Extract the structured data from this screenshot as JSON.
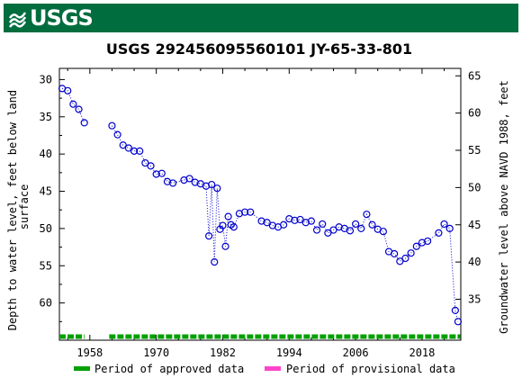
{
  "header": {
    "logo_text": "USGS",
    "logo_icon": "usgs-wave-icon",
    "banner_color": "#006d3f"
  },
  "chart_data": {
    "type": "scatter",
    "title": "USGS 292456095560101 JY-65-33-801",
    "ylabel_left": "Depth to water level, feet below land surface",
    "ylabel_right": "Groundwater level above NAVD 1988, feet",
    "xlim": [
      1952.5,
      2025.0
    ],
    "ylim_left": [
      65.0,
      28.5
    ],
    "ylim_right": [
      29.5,
      66.0
    ],
    "x_ticks": [
      1958,
      1970,
      1982,
      1994,
      2006,
      2018
    ],
    "y_ticks_left": [
      30,
      35,
      40,
      45,
      50,
      55,
      60
    ],
    "y_ticks_right": [
      35,
      40,
      45,
      50,
      55,
      60,
      65
    ],
    "marker_color": "#0000cc",
    "series": [
      {
        "values_x": [
          1953.0,
          1954.0,
          1955.0,
          1956.0,
          1957.0,
          1962.0,
          1963.0,
          1964.0,
          1965.0,
          1966.0,
          1967.0,
          1968.0,
          1969.0,
          1970.0,
          1971.0,
          1972.0,
          1973.0,
          1975.0,
          1976.0,
          1977.0,
          1978.0,
          1979.0,
          1979.5,
          1980.0,
          1980.5,
          1981.0,
          1981.5,
          1982.0,
          1982.5,
          1983.0,
          1983.5,
          1984.0,
          1985.0,
          1986.0,
          1987.0,
          1989.0,
          1990.0,
          1991.0,
          1992.0,
          1993.0,
          1994.0,
          1995.0,
          1996.0,
          1997.0,
          1998.0,
          1999.0,
          2000.0,
          2001.0,
          2002.0,
          2003.0,
          2004.0,
          2005.0,
          2006.0,
          2007.0,
          2008.0,
          2009.0,
          2010.0,
          2011.0,
          2012.0,
          2013.0,
          2014.0,
          2015.0,
          2016.0,
          2017.0,
          2018.0,
          2019.0,
          2021.0,
          2022.0,
          2023.0,
          2024.0,
          2024.5
        ],
        "values_y": [
          31.2,
          31.5,
          33.3,
          34.0,
          35.8,
          36.2,
          37.4,
          38.8,
          39.2,
          39.6,
          39.6,
          41.2,
          41.6,
          42.7,
          42.6,
          43.7,
          43.9,
          43.5,
          43.3,
          43.8,
          44.0,
          44.3,
          51.0,
          44.1,
          54.5,
          44.6,
          50.1,
          49.6,
          52.4,
          48.4,
          49.5,
          49.8,
          48.0,
          47.8,
          47.8,
          49.0,
          49.2,
          49.6,
          49.8,
          49.5,
          48.7,
          48.9,
          48.8,
          49.2,
          49.0,
          50.2,
          49.4,
          50.6,
          50.2,
          49.8,
          50.0,
          50.3,
          49.4,
          50.0,
          48.1,
          49.5,
          50.1,
          50.4,
          53.1,
          53.4,
          54.4,
          54.0,
          53.3,
          52.4,
          51.9,
          51.7,
          50.6,
          49.4,
          50.0,
          61.0,
          62.5
        ],
        "connect_missing": [
          [
            1957.0,
            1962.0
          ]
        ]
      }
    ],
    "approved_periods": [
      [
        1952.5,
        1957.0
      ],
      [
        1961.5,
        2024.9
      ]
    ],
    "approved_color": "#00a000",
    "provisional_color": "#ff44cc",
    "legend": [
      {
        "label": "Period of approved data",
        "color": "#00a000"
      },
      {
        "label": "Period of provisional data",
        "color": "#ff44cc"
      }
    ],
    "legend_position": "bottom",
    "grid": false
  }
}
